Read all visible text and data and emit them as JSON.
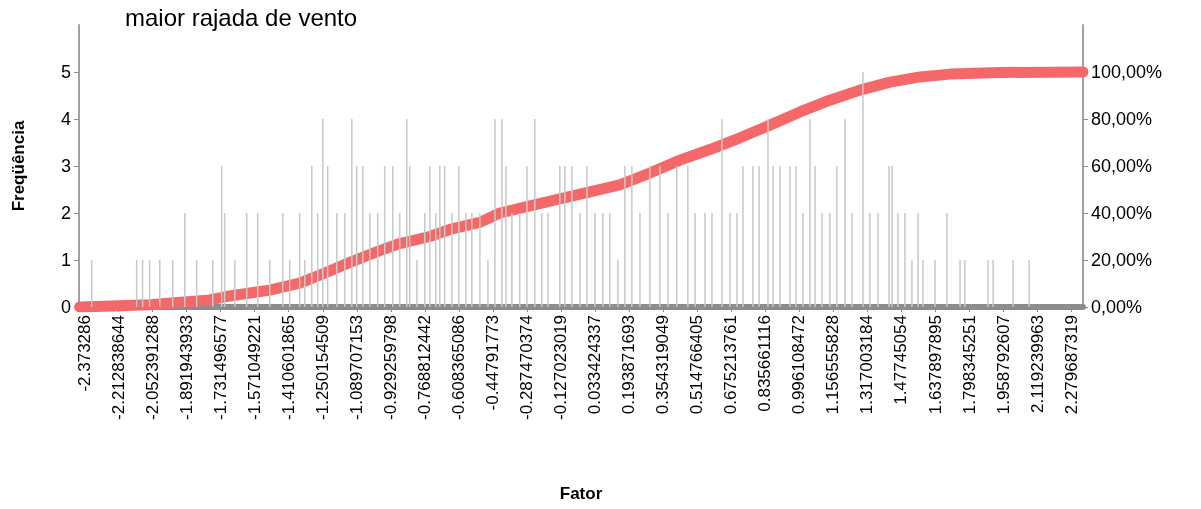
{
  "chart_data": {
    "type": "bar",
    "title": "maior rajada de vento",
    "xlabel": "Fator",
    "ylabel": "Freqüência",
    "xlim": [
      -2.4,
      2.336
    ],
    "xticks": [
      -2.373286,
      -2.212838644,
      -2.052391288,
      -1.891943933,
      -1.731496577,
      -1.571049221,
      -1.410601865,
      -1.250154509,
      -1.089707153,
      -0.929259798,
      -0.768812442,
      -0.608365086,
      -0.44791773,
      -0.287470374,
      -0.127023019,
      0.033424337,
      0.193871693,
      0.354319049,
      0.514766405,
      0.675213761,
      0.835661116,
      0.996108472,
      1.156555828,
      1.317003184,
      1.47745054,
      1.637897895,
      1.798345251,
      1.958792607,
      2.119239963,
      2.279687319
    ],
    "ylim": [
      0,
      6
    ],
    "yticks": [
      0,
      1,
      2,
      3,
      4,
      5
    ],
    "y2lim": [
      0,
      120
    ],
    "y2ticks": [
      {
        "value": 0,
        "label": "0,00%"
      },
      {
        "value": 20,
        "label": "20,00%"
      },
      {
        "value": 40,
        "label": "40,00%"
      },
      {
        "value": 60,
        "label": "60,00%"
      },
      {
        "value": 80,
        "label": "80,00%"
      },
      {
        "value": 100,
        "label": "100,00%"
      }
    ],
    "series": [
      {
        "color": "#c8c8c8",
        "x": [
          -2.34,
          -2.128,
          -2.1,
          -2.067,
          -2.019,
          -1.958,
          -1.901,
          -1.845,
          -1.769,
          -1.727,
          -1.713,
          -1.665,
          -1.609,
          -1.557,
          -1.5,
          -1.439,
          -1.406,
          -1.359,
          -1.335,
          -1.302,
          -1.274,
          -1.25,
          -1.227,
          -1.184,
          -1.146,
          -1.113,
          -1.09,
          -1.061,
          -1.028,
          -0.991,
          -0.958,
          -0.92,
          -0.887,
          -0.854,
          -0.84,
          -0.806,
          -0.769,
          -0.745,
          -0.717,
          -0.698,
          -0.675,
          -0.641,
          -0.608,
          -0.575,
          -0.547,
          -0.509,
          -0.471,
          -0.438,
          -0.405,
          -0.386,
          -0.358,
          -0.321,
          -0.287,
          -0.25,
          -0.217,
          -0.188,
          -0.132,
          -0.108,
          -0.075,
          -0.037,
          -0.004,
          0.034,
          0.071,
          0.104,
          0.142,
          0.175,
          0.208,
          0.246,
          0.293,
          0.34,
          0.378,
          0.42,
          0.472,
          0.506,
          0.553,
          0.586,
          0.633,
          0.671,
          0.704,
          0.732,
          0.779,
          0.808,
          0.85,
          0.874,
          0.907,
          0.954,
          0.982,
          1.015,
          1.048,
          1.072,
          1.105,
          1.142,
          1.175,
          1.213,
          1.246,
          1.298,
          1.331,
          1.369,
          1.421,
          1.435,
          1.463,
          1.496,
          1.529,
          1.558,
          1.581,
          1.638,
          1.694,
          1.756,
          1.779,
          1.888,
          1.912,
          2.006,
          2.082
        ],
        "values": [
          1,
          1,
          1,
          1,
          1,
          1,
          2,
          1,
          1,
          3,
          2,
          1,
          2,
          2,
          1,
          2,
          1,
          2,
          1,
          3,
          2,
          4,
          3,
          2,
          2,
          4,
          3,
          3,
          2,
          2,
          3,
          3,
          2,
          4,
          3,
          1,
          2,
          3,
          2,
          3,
          3,
          2,
          3,
          2,
          2,
          2,
          1,
          4,
          4,
          3,
          2,
          2,
          3,
          4,
          2,
          2,
          3,
          3,
          3,
          2,
          3,
          2,
          2,
          2,
          1,
          3,
          3,
          2,
          3,
          3,
          2,
          3,
          3,
          2,
          2,
          2,
          4,
          2,
          2,
          3,
          3,
          3,
          4,
          3,
          3,
          3,
          3,
          2,
          4,
          3,
          2,
          2,
          3,
          4,
          2,
          5,
          2,
          2,
          3,
          3,
          2,
          2,
          1,
          2,
          1,
          1,
          2,
          1,
          1,
          1,
          1,
          1,
          1
        ]
      },
      {
        "type": "line",
        "axis": "y2",
        "color": "#f4686a",
        "x": [
          -2.397,
          -2.067,
          -1.783,
          -1.689,
          -1.5,
          -1.359,
          -1.264,
          -1.122,
          -0.981,
          -0.887,
          -0.745,
          -0.651,
          -0.509,
          -0.415,
          -0.273,
          -0.132,
          0.01,
          0.151,
          0.293,
          0.435,
          0.576,
          0.718,
          0.859,
          1.001,
          1.142,
          1.284,
          1.426,
          1.567,
          1.709,
          1.945,
          2.336
        ],
        "values": [
          0,
          1,
          3,
          4.7,
          7.2,
          10.2,
          13.6,
          19,
          24,
          27,
          30,
          33,
          36,
          40,
          43,
          46,
          49,
          52,
          57,
          62.5,
          67,
          72,
          77.4,
          83,
          88,
          92.3,
          95.7,
          97.9,
          99.1,
          99.8,
          100
        ]
      }
    ]
  }
}
